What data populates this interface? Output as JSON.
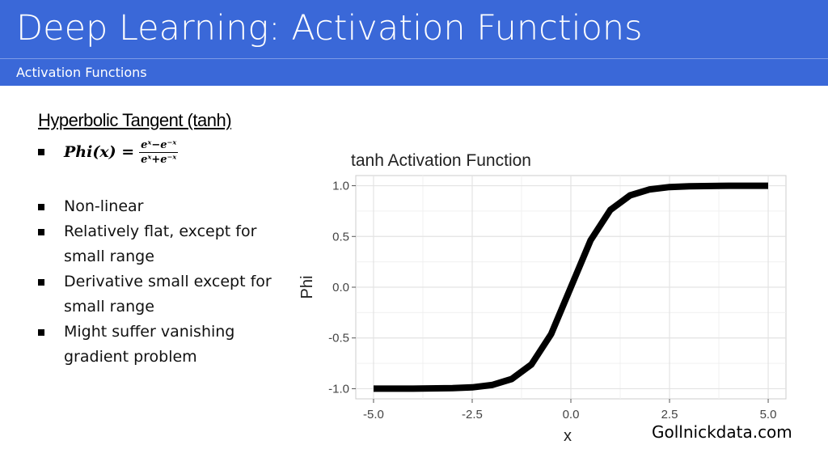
{
  "header": {
    "title": "Deep Learning: Activation Functions",
    "subtitle": "Activation Functions"
  },
  "content": {
    "heading": "Hyperbolic Tangent (tanh)",
    "formula": {
      "lhs": "Phi(x) =",
      "numerator": "eˣ−e⁻ˣ",
      "denominator": "eˣ+e⁻ˣ"
    },
    "bullets": [
      "Non-linear",
      "Relatively flat, except for small range",
      "Derivative small except for small range",
      "Might suffer vanishing gradient problem"
    ]
  },
  "watermark": "Gollnickdata.com",
  "chart_data": {
    "type": "line",
    "title": "tanh Activation Function",
    "xlabel": "x",
    "ylabel": "Phi",
    "xlim": [
      -5,
      5
    ],
    "ylim": [
      -1,
      1
    ],
    "x_ticks": [
      "-5.0",
      "-2.5",
      "0.0",
      "2.5",
      "5.0"
    ],
    "y_ticks": [
      "1.0",
      "0.5",
      "0.0",
      "-0.5",
      "-1.0"
    ],
    "grid": true,
    "series": [
      {
        "x": [
          -5,
          -4,
          -3,
          -2.5,
          -2,
          -1.5,
          -1,
          -0.5,
          0,
          0.5,
          1,
          1.5,
          2,
          2.5,
          3,
          4,
          5
        ],
        "y": [
          -0.9999,
          -0.9993,
          -0.9951,
          -0.9866,
          -0.964,
          -0.9051,
          -0.7616,
          -0.4621,
          0,
          0.4621,
          0.7616,
          0.9051,
          0.964,
          0.9866,
          0.9951,
          0.9993,
          0.9999
        ],
        "color": "#000000"
      }
    ]
  }
}
